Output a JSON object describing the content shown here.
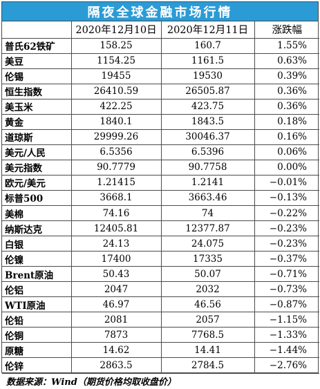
{
  "title": "隔夜全球金融市场行情",
  "headers": [
    "",
    "2020年12月10日",
    "2020年12月11日",
    "涨跌幅"
  ],
  "rows": [
    {
      "name": "普氏62铁矿",
      "d1": "158.25",
      "d2": "160.7",
      "chg": "1.55%"
    },
    {
      "name": "美豆",
      "d1": "1154.25",
      "d2": "1161.5",
      "chg": "0.63%"
    },
    {
      "name": "伦锡",
      "d1": "19455",
      "d2": "19530",
      "chg": "0.39%"
    },
    {
      "name": "恒生指数",
      "d1": "26410.59",
      "d2": "26505.87",
      "chg": "0.36%"
    },
    {
      "name": "美玉米",
      "d1": "422.25",
      "d2": "423.75",
      "chg": "0.36%"
    },
    {
      "name": "黄金",
      "d1": "1840.1",
      "d2": "1843.5",
      "chg": "0.18%"
    },
    {
      "name": "道琼斯",
      "d1": "29999.26",
      "d2": "30046.37",
      "chg": "0.16%"
    },
    {
      "name": "美元/人民",
      "d1": "6.5356",
      "d2": "6.5396",
      "chg": "0.06%"
    },
    {
      "name": "美元指数",
      "d1": "90.7779",
      "d2": "90.7758",
      "chg": "0.00%"
    },
    {
      "name": "欧元/美元",
      "d1": "1.21415",
      "d2": "1.2141",
      "chg": "−0.01%"
    },
    {
      "name": "标普500",
      "d1": "3668.1",
      "d2": "3663.46",
      "chg": "−0.13%"
    },
    {
      "name": "美棉",
      "d1": "74.16",
      "d2": "74",
      "chg": "−0.22%"
    },
    {
      "name": "纳斯达克",
      "d1": "12405.81",
      "d2": "12377.87",
      "chg": "−0.23%"
    },
    {
      "name": "白银",
      "d1": "24.13",
      "d2": "24.075",
      "chg": "−0.23%"
    },
    {
      "name": "伦镍",
      "d1": "17400",
      "d2": "17335",
      "chg": "−0.37%"
    },
    {
      "name": "Brent原油",
      "d1": "50.43",
      "d2": "50.07",
      "chg": "−0.71%"
    },
    {
      "name": "伦铝",
      "d1": "2047",
      "d2": "2032",
      "chg": "−0.73%"
    },
    {
      "name": "WTI原油",
      "d1": "46.97",
      "d2": "46.56",
      "chg": "−0.87%"
    },
    {
      "name": "伦铅",
      "d1": "2081",
      "d2": "2057",
      "chg": "−1.15%"
    },
    {
      "name": "伦铜",
      "d1": "7873",
      "d2": "7768.5",
      "chg": "−1.33%"
    },
    {
      "name": "原糖",
      "d1": "14.62",
      "d2": "14.41",
      "chg": "−1.44%"
    },
    {
      "name": "伦锌",
      "d1": "2863.5",
      "d2": "2784.5",
      "chg": "−2.76%"
    }
  ],
  "footer": "数据来源：Wind（期货价格均取收盘价）"
}
